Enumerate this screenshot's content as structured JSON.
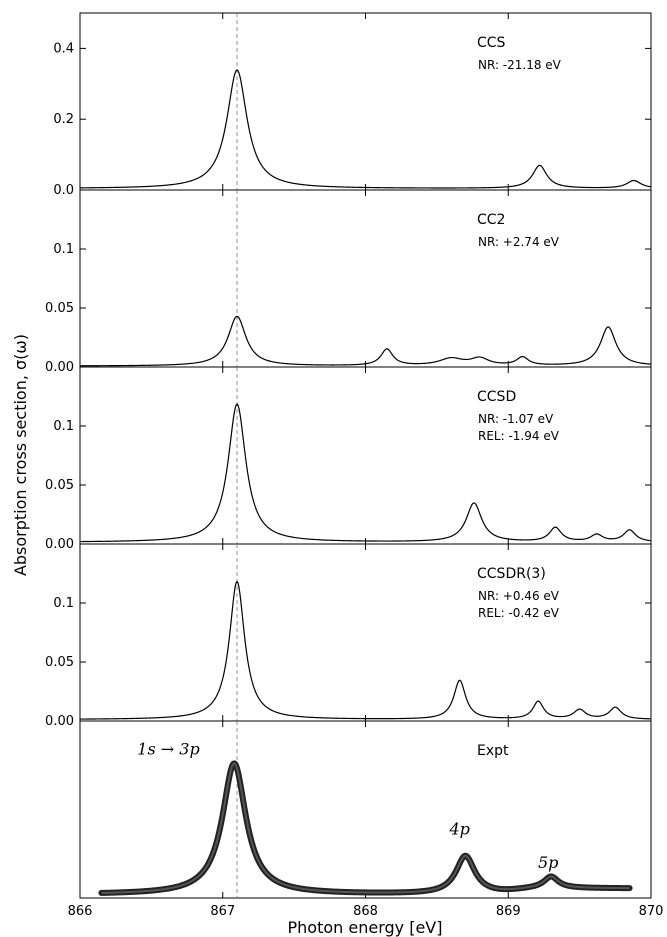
{
  "chart_data": {
    "type": "line",
    "xlabel": "Photon energy [eV]",
    "ylabel": "Absorption cross section, σ(ω)",
    "xlim": [
      866,
      870
    ],
    "x_ticks": [
      "866",
      "867",
      "868",
      "869",
      "870"
    ],
    "reference_line_x": 867.1,
    "panels": [
      {
        "label": "CCS",
        "shifts": [
          "NR: -21.18 eV"
        ],
        "ylim": [
          0,
          0.5
        ],
        "y_ticks": [
          {
            "v": 0.0,
            "t": "0.0"
          },
          {
            "v": 0.2,
            "t": "0.2"
          },
          {
            "v": 0.4,
            "t": "0.4"
          }
        ],
        "peaks": [
          {
            "x": 867.1,
            "h": 0.335,
            "w": 0.17
          },
          {
            "x": 869.22,
            "h": 0.065,
            "w": 0.12
          },
          {
            "x": 869.88,
            "h": 0.022,
            "w": 0.12
          }
        ],
        "baseline": 0.004
      },
      {
        "label": "CC2",
        "shifts": [
          "NR: +2.74 eV"
        ],
        "ylim": [
          0,
          0.15
        ],
        "y_ticks": [
          {
            "v": 0.0,
            "t": "0.00"
          },
          {
            "v": 0.05,
            "t": "0.05"
          },
          {
            "v": 0.1,
            "t": "0.1"
          }
        ],
        "peaks": [
          {
            "x": 867.1,
            "h": 0.042,
            "w": 0.15
          },
          {
            "x": 868.15,
            "h": 0.014,
            "w": 0.1
          },
          {
            "x": 868.6,
            "h": 0.006,
            "w": 0.2
          },
          {
            "x": 868.8,
            "h": 0.006,
            "w": 0.15
          },
          {
            "x": 869.1,
            "h": 0.007,
            "w": 0.1
          },
          {
            "x": 869.7,
            "h": 0.033,
            "w": 0.13
          }
        ],
        "baseline": 0.0008
      },
      {
        "label": "CCSD",
        "shifts": [
          "NR: -1.07 eV",
          "REL: -1.94 eV"
        ],
        "ylim": [
          0,
          0.15
        ],
        "y_ticks": [
          {
            "v": 0.0,
            "t": "0.00"
          },
          {
            "v": 0.05,
            "t": "0.05"
          },
          {
            "v": 0.1,
            "t": "0.1"
          }
        ],
        "peaks": [
          {
            "x": 867.1,
            "h": 0.117,
            "w": 0.15
          },
          {
            "x": 868.76,
            "h": 0.033,
            "w": 0.13
          },
          {
            "x": 869.33,
            "h": 0.012,
            "w": 0.1
          },
          {
            "x": 869.62,
            "h": 0.006,
            "w": 0.1
          },
          {
            "x": 869.85,
            "h": 0.01,
            "w": 0.1
          }
        ],
        "baseline": 0.0015
      },
      {
        "label": "CCSDR(3)",
        "shifts": [
          "NR: +0.46 eV",
          "REL: -0.42 eV"
        ],
        "ylim": [
          0,
          0.15
        ],
        "y_ticks": [
          {
            "v": 0.0,
            "t": "0.00"
          },
          {
            "v": 0.05,
            "t": "0.05"
          },
          {
            "v": 0.1,
            "t": "0.1"
          }
        ],
        "peaks": [
          {
            "x": 867.1,
            "h": 0.117,
            "w": 0.13
          },
          {
            "x": 868.66,
            "h": 0.033,
            "w": 0.1
          },
          {
            "x": 869.21,
            "h": 0.015,
            "w": 0.09
          },
          {
            "x": 869.5,
            "h": 0.008,
            "w": 0.1
          },
          {
            "x": 869.75,
            "h": 0.01,
            "w": 0.1
          }
        ],
        "baseline": 0.0012
      },
      {
        "label": "Expt",
        "shifts": [],
        "experimental": true,
        "ylim": [
          0,
          1.0
        ],
        "y_ticks": [],
        "x_start": 866.15,
        "x_end": 869.85,
        "peaks": [
          {
            "x": 867.08,
            "h": 0.74,
            "w": 0.2
          },
          {
            "x": 868.7,
            "h": 0.215,
            "w": 0.16
          },
          {
            "x": 869.3,
            "h": 0.065,
            "w": 0.12
          }
        ],
        "step": {
          "x": 869.05,
          "h": 0.055,
          "w": 0.08
        },
        "baseline": 0.02,
        "annotations": [
          {
            "text": "1s → 3p",
            "x": 866.62,
            "y": 0.81
          },
          {
            "text": "4p",
            "x": 868.66,
            "y": 0.36
          },
          {
            "text": "5p",
            "x": 869.28,
            "y": 0.17
          }
        ]
      }
    ]
  }
}
